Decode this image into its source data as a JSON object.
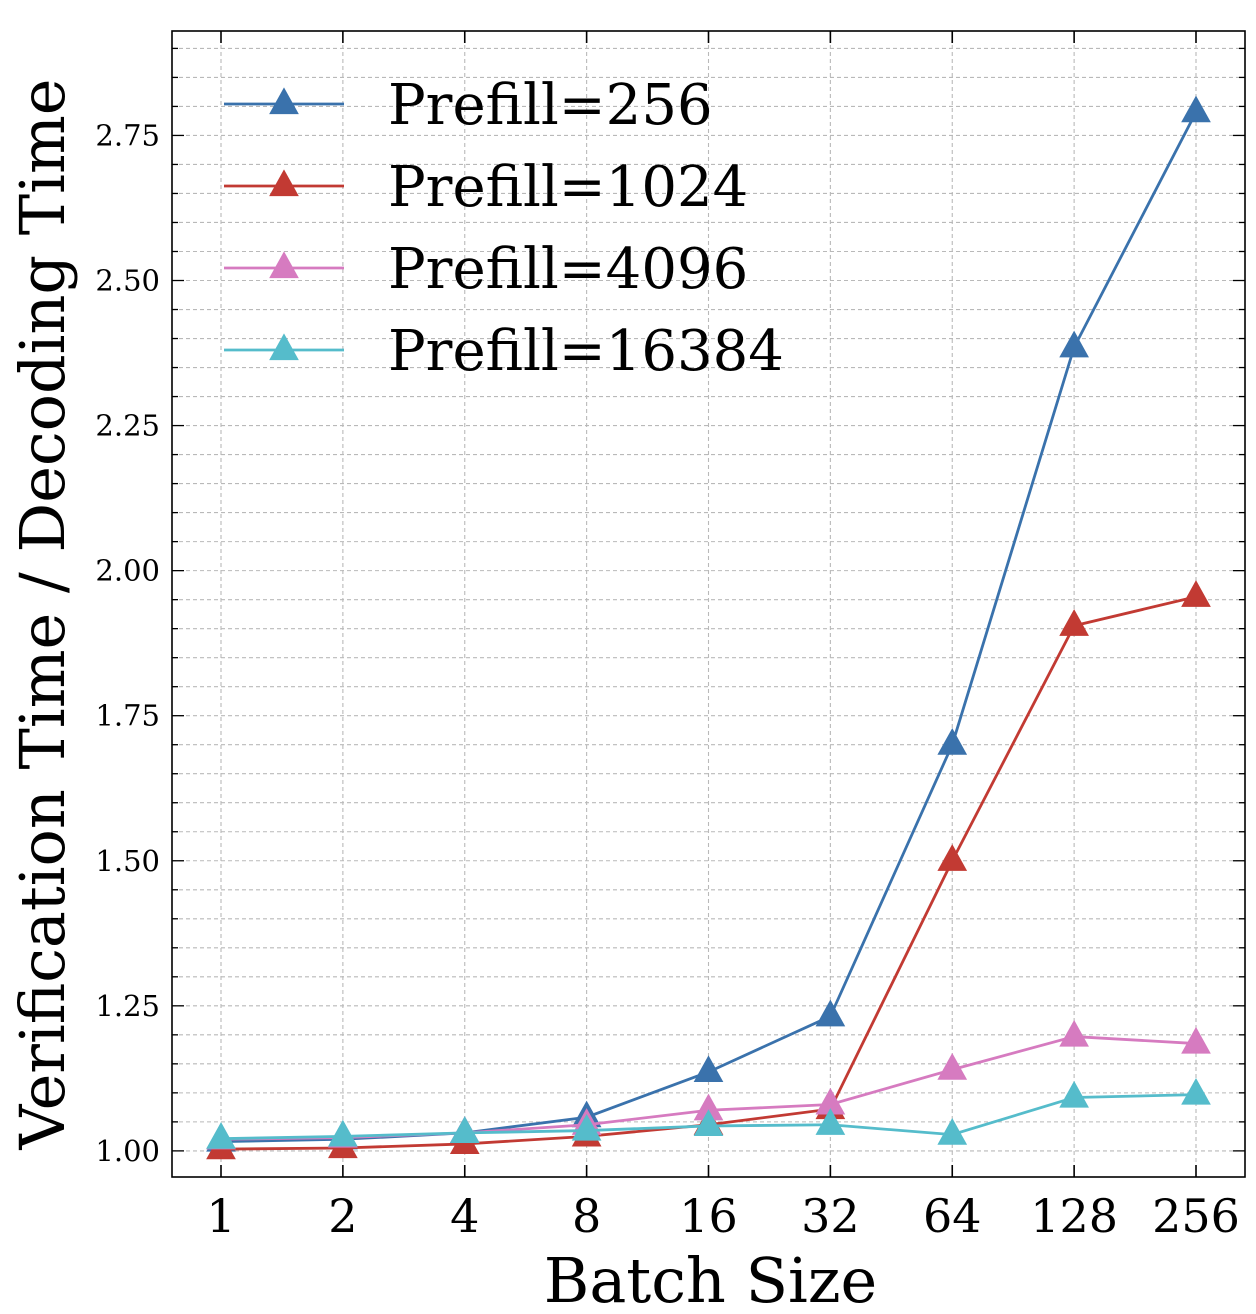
{
  "chart_data": {
    "type": "line",
    "title": "",
    "xlabel": "Batch Size",
    "ylabel": "Verification Time / Decoding Time",
    "categories": [
      "1",
      "2",
      "4",
      "8",
      "16",
      "32",
      "64",
      "128",
      "256"
    ],
    "ylim": [
      0.955,
      2.93
    ],
    "yticks": [
      "1.00",
      "1.25",
      "1.50",
      "1.75",
      "2.00",
      "2.25",
      "2.50",
      "2.75"
    ],
    "ytick_values": [
      1.0,
      1.25,
      1.5,
      1.75,
      2.0,
      2.25,
      2.5,
      2.75
    ],
    "grid": true,
    "legend_position": "top-left",
    "marker": "triangle-up",
    "series": [
      {
        "name": "Prefill=256",
        "color": "#3a72ac",
        "values": [
          1.016,
          1.02,
          1.031,
          1.058,
          1.136,
          1.232,
          1.7,
          2.385,
          2.79
        ]
      },
      {
        "name": "Prefill=1024",
        "color": "#c23a33",
        "values": [
          1.003,
          1.005,
          1.012,
          1.025,
          1.045,
          1.072,
          1.5,
          1.905,
          1.955
        ]
      },
      {
        "name": "Prefill=4096",
        "color": "#d67bc0",
        "values": [
          1.02,
          1.023,
          1.031,
          1.045,
          1.07,
          1.08,
          1.14,
          1.197,
          1.185
        ]
      },
      {
        "name": "Prefill=16384",
        "color": "#55bccb",
        "values": [
          1.021,
          1.025,
          1.031,
          1.035,
          1.043,
          1.045,
          1.028,
          1.092,
          1.097
        ]
      }
    ]
  }
}
